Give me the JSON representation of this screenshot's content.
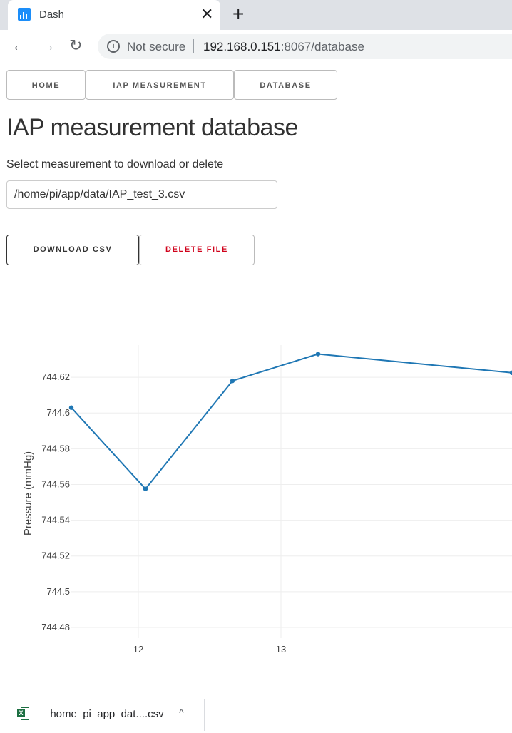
{
  "browser": {
    "tab": {
      "title": "Dash",
      "close": "✕",
      "favicon": "dash-bar-chart-icon"
    },
    "new_tab": "+",
    "nav": {
      "back": "←",
      "forward": "→",
      "reload": "↻"
    },
    "address": {
      "security_icon": "i",
      "security_text": "Not secure",
      "host": "192.168.0.151",
      "rest": ":8067/database"
    }
  },
  "nav": {
    "home": "HOME",
    "iap": "IAP MEASUREMENT",
    "database": "DATABASE"
  },
  "page": {
    "title": "IAP measurement database",
    "select_label": "Select measurement to download or delete",
    "selected_file": "/home/pi/app/data/IAP_test_3.csv"
  },
  "actions": {
    "download": "DOWNLOAD CSV",
    "delete": "DELETE FILE"
  },
  "colors": {
    "line": "#1f77b4",
    "delete": "#d0021b",
    "grid": "#eeeeee"
  },
  "chart_data": {
    "type": "line",
    "title": "",
    "xlabel": "",
    "ylabel": "Pressure (mmHg)",
    "xlim": [
      11.53,
      14.62
    ],
    "ylim": [
      744.474,
      744.638
    ],
    "grid": true,
    "x_ticks": [
      12,
      13
    ],
    "x_tick_labels": [
      "12",
      "13"
    ],
    "y_ticks": [
      744.48,
      744.5,
      744.52,
      744.54,
      744.56,
      744.58,
      744.6,
      744.62
    ],
    "y_tick_labels": [
      "744.48",
      "744.5",
      "744.52",
      "744.54",
      "744.56",
      "744.58",
      "744.6",
      "744.62"
    ],
    "series": [
      {
        "name": "",
        "x": [
          11.53,
          12.05,
          12.66,
          13.26,
          14.62
        ],
        "y": [
          744.603,
          744.5575,
          744.618,
          744.633,
          744.6225
        ]
      }
    ]
  },
  "download_bar": {
    "filename": "_home_pi_app_dat....csv",
    "chevron": "^",
    "icon": "excel-file-icon"
  }
}
